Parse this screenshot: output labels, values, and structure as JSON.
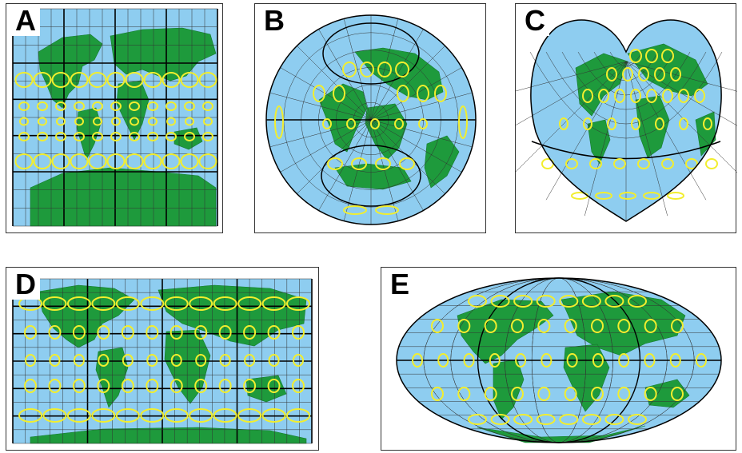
{
  "colors": {
    "ocean": "#8ecdf0",
    "land": "#1e9a3c",
    "ellipse": "#f2ee2e",
    "grid_thin": "#333333",
    "grid_thick": "#000000"
  },
  "panels": [
    {
      "label": "A",
      "projection": "cylindrical-square"
    },
    {
      "label": "B",
      "projection": "oblique-azimuthal"
    },
    {
      "label": "C",
      "projection": "heart-shaped"
    },
    {
      "label": "D",
      "projection": "cylindrical-wide"
    },
    {
      "label": "E",
      "projection": "elliptical"
    }
  ],
  "icons": {
    "indicatrix": "ellipse-icon",
    "continent": "landmass-icon"
  }
}
